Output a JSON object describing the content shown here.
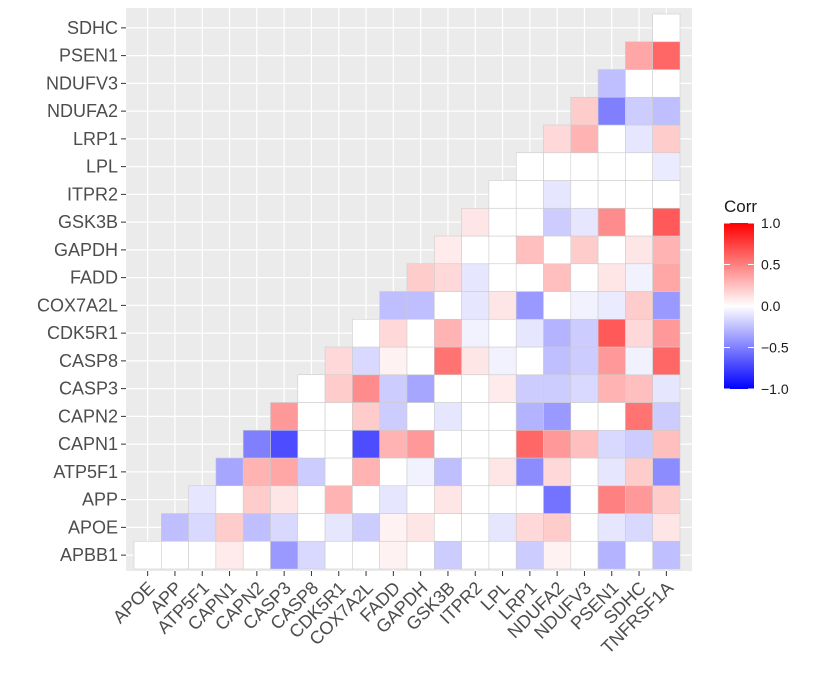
{
  "chart_data": {
    "type": "heatmap",
    "title": "",
    "xlabel": "",
    "ylabel": "",
    "x_labels": [
      "APOE",
      "APP",
      "ATP5F1",
      "CAPN1",
      "CAPN2",
      "CASP3",
      "CASP8",
      "CDK5R1",
      "COX7A2L",
      "FADD",
      "GAPDH",
      "GSK3B",
      "ITPR2",
      "LPL",
      "LRP1",
      "NDUFA2",
      "NDUFV3",
      "PSEN1",
      "SDHC",
      "TNFRSF1A"
    ],
    "y_labels": [
      "APBB1",
      "APOE",
      "APP",
      "ATP5F1",
      "CAPN1",
      "CAPN2",
      "CASP3",
      "CASP8",
      "CDK5R1",
      "COX7A2L",
      "FADD",
      "GAPDH",
      "GSK3B",
      "ITPR2",
      "LPL",
      "LRP1",
      "NDUFA2",
      "NDUFV3",
      "PSEN1",
      "SDHC"
    ],
    "layout": "lower-triangle correlation matrix",
    "values": [
      [
        0,
        0,
        0,
        0.08,
        0,
        -0.4,
        -0.15,
        0,
        0,
        0.05,
        0,
        -0.2,
        0,
        0,
        -0.2,
        0.05,
        0,
        -0.3,
        0,
        -0.25
      ],
      [
        null,
        -0.25,
        -0.15,
        0.2,
        -0.25,
        -0.15,
        0,
        -0.1,
        -0.2,
        0.05,
        0.1,
        0,
        0,
        -0.1,
        0.15,
        0.2,
        0,
        -0.1,
        -0.15,
        0.1
      ],
      [
        null,
        null,
        -0.1,
        0,
        0.2,
        0.1,
        0,
        0.3,
        0,
        -0.1,
        0,
        0.1,
        0,
        0,
        0,
        -0.55,
        0,
        0.5,
        0.4,
        0.2
      ],
      [
        null,
        null,
        null,
        -0.35,
        0.3,
        0.35,
        -0.2,
        0,
        0.3,
        0,
        -0.05,
        -0.25,
        0,
        0.1,
        -0.45,
        0.15,
        0,
        -0.1,
        0.2,
        -0.45
      ],
      [
        null,
        null,
        null,
        null,
        -0.5,
        -0.7,
        0,
        0,
        -0.7,
        0.3,
        0.4,
        0,
        0,
        0,
        0.6,
        0.4,
        0.25,
        -0.15,
        -0.2,
        0.25
      ],
      [
        null,
        null,
        null,
        null,
        null,
        0.4,
        0,
        0,
        0.2,
        -0.2,
        0,
        -0.1,
        0,
        0,
        -0.3,
        -0.4,
        0,
        0,
        0.55,
        -0.2
      ],
      [
        null,
        null,
        null,
        null,
        null,
        null,
        0,
        0.2,
        0.45,
        -0.2,
        -0.35,
        0,
        0,
        0.08,
        -0.2,
        -0.2,
        -0.15,
        0.3,
        0.25,
        -0.1
      ],
      [
        null,
        null,
        null,
        null,
        null,
        null,
        null,
        0.15,
        -0.15,
        0.05,
        0,
        0.55,
        0.1,
        -0.05,
        0,
        -0.25,
        -0.2,
        0.4,
        -0.05,
        0.6
      ],
      [
        null,
        null,
        null,
        null,
        null,
        null,
        null,
        null,
        0,
        0.15,
        0,
        0.3,
        -0.05,
        0,
        -0.1,
        -0.3,
        -0.2,
        0.65,
        0.15,
        0.4
      ],
      [
        null,
        null,
        null,
        null,
        null,
        null,
        null,
        null,
        null,
        -0.25,
        -0.25,
        0,
        -0.1,
        0.1,
        -0.4,
        0,
        -0.05,
        -0.08,
        0.2,
        -0.4
      ],
      [
        null,
        null,
        null,
        null,
        null,
        null,
        null,
        null,
        null,
        null,
        0.2,
        0.15,
        -0.1,
        0,
        0,
        0.25,
        0,
        0.1,
        -0.05,
        0.35
      ],
      [
        null,
        null,
        null,
        null,
        null,
        null,
        null,
        null,
        null,
        null,
        null,
        0.08,
        0,
        0,
        0.25,
        0,
        0.2,
        0,
        0.1,
        0.3
      ],
      [
        null,
        null,
        null,
        null,
        null,
        null,
        null,
        null,
        null,
        null,
        null,
        null,
        0.1,
        0,
        0,
        -0.2,
        -0.1,
        0.45,
        0,
        0.65
      ],
      [
        null,
        null,
        null,
        null,
        null,
        null,
        null,
        null,
        null,
        null,
        null,
        null,
        null,
        0,
        0,
        -0.1,
        0,
        0,
        0,
        0
      ],
      [
        null,
        null,
        null,
        null,
        null,
        null,
        null,
        null,
        null,
        null,
        null,
        null,
        null,
        null,
        0,
        0,
        0,
        0,
        0,
        -0.08
      ],
      [
        null,
        null,
        null,
        null,
        null,
        null,
        null,
        null,
        null,
        null,
        null,
        null,
        null,
        null,
        null,
        0.15,
        0.3,
        0,
        -0.1,
        0.2
      ],
      [
        null,
        null,
        null,
        null,
        null,
        null,
        null,
        null,
        null,
        null,
        null,
        null,
        null,
        null,
        null,
        null,
        0.2,
        -0.5,
        -0.2,
        -0.25
      ],
      [
        null,
        null,
        null,
        null,
        null,
        null,
        null,
        null,
        null,
        null,
        null,
        null,
        null,
        null,
        null,
        null,
        null,
        -0.25,
        0,
        0
      ],
      [
        null,
        null,
        null,
        null,
        null,
        null,
        null,
        null,
        null,
        null,
        null,
        null,
        null,
        null,
        null,
        null,
        null,
        null,
        0.35,
        0.6
      ],
      [
        null,
        null,
        null,
        null,
        null,
        null,
        null,
        null,
        null,
        null,
        null,
        null,
        null,
        null,
        null,
        null,
        null,
        null,
        null,
        0
      ]
    ],
    "legend": {
      "title": "Corr",
      "position": "right",
      "ticks": [
        1.0,
        0.5,
        0.0,
        -0.5,
        -1.0
      ],
      "tick_labels": [
        "1.0",
        "0.5",
        "0.0",
        "−0.5",
        "−1.0"
      ],
      "low_color": "#0000FF",
      "mid_color": "#FFFFFF",
      "high_color": "#FF0000"
    },
    "limits": [
      -1,
      1
    ],
    "grid": true,
    "panel_background": "#EBEBEB",
    "grid_color": "#FFFFFF"
  }
}
